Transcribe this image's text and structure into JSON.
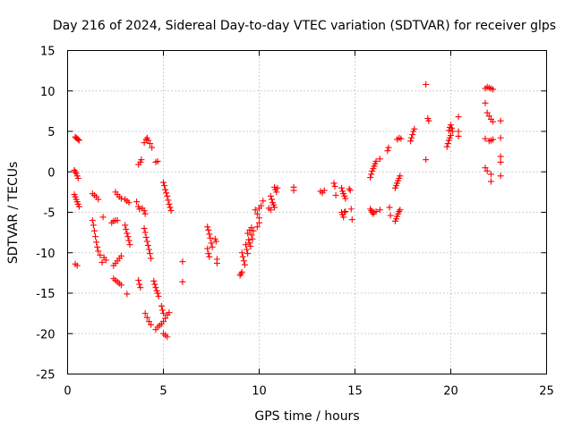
{
  "chart_data": {
    "type": "scatter",
    "title": "Day 216 of 2024, Sidereal Day-to-day VTEC variation (SDTVAR) for receiver glps",
    "xlabel": "GPS time / hours",
    "ylabel": "SDTVAR / TECUs",
    "xlim": [
      0,
      25
    ],
    "ylim": [
      -25,
      15
    ],
    "xticks": [
      0,
      5,
      10,
      15,
      20,
      25
    ],
    "yticks": [
      -25,
      -20,
      -15,
      -10,
      -5,
      0,
      5,
      10,
      15
    ],
    "grid": true,
    "marker": "+",
    "color": "#ff0000",
    "series": [
      {
        "name": "SDTVAR",
        "points": [
          [
            0.4,
            4.3
          ],
          [
            0.45,
            4.2
          ],
          [
            0.5,
            4.1
          ],
          [
            0.55,
            4.0
          ],
          [
            0.6,
            3.9
          ],
          [
            0.35,
            0.2
          ],
          [
            0.4,
            0.0
          ],
          [
            0.45,
            -0.2
          ],
          [
            0.5,
            -0.5
          ],
          [
            0.55,
            -0.8
          ],
          [
            0.35,
            -2.8
          ],
          [
            0.4,
            -3.1
          ],
          [
            0.45,
            -3.4
          ],
          [
            0.5,
            -3.7
          ],
          [
            0.55,
            -4.0
          ],
          [
            0.6,
            -4.3
          ],
          [
            0.4,
            -11.4
          ],
          [
            0.5,
            -11.6
          ],
          [
            1.3,
            -2.7
          ],
          [
            1.4,
            -2.9
          ],
          [
            1.5,
            -3.1
          ],
          [
            1.6,
            -3.4
          ],
          [
            1.3,
            -6.0
          ],
          [
            1.35,
            -6.6
          ],
          [
            1.4,
            -7.3
          ],
          [
            1.45,
            -8.0
          ],
          [
            1.5,
            -8.7
          ],
          [
            1.55,
            -9.3
          ],
          [
            1.6,
            -9.8
          ],
          [
            1.7,
            -10.3
          ],
          [
            1.8,
            -11.2
          ],
          [
            1.9,
            -10.6
          ],
          [
            2.0,
            -10.9
          ],
          [
            1.85,
            -5.6
          ],
          [
            2.3,
            -6.3
          ],
          [
            2.4,
            -6.1
          ],
          [
            2.5,
            -6.0
          ],
          [
            2.6,
            -6.0
          ],
          [
            2.4,
            -11.6
          ],
          [
            2.5,
            -11.3
          ],
          [
            2.6,
            -11.0
          ],
          [
            2.7,
            -10.7
          ],
          [
            2.8,
            -10.4
          ],
          [
            2.4,
            -13.2
          ],
          [
            2.5,
            -13.4
          ],
          [
            2.6,
            -13.6
          ],
          [
            2.7,
            -13.8
          ],
          [
            2.8,
            -14.0
          ],
          [
            2.5,
            -2.5
          ],
          [
            2.6,
            -2.8
          ],
          [
            2.7,
            -3.1
          ],
          [
            2.8,
            -3.3
          ],
          [
            3.0,
            -3.4
          ],
          [
            3.1,
            -3.6
          ],
          [
            3.2,
            -3.8
          ],
          [
            3.0,
            -6.6
          ],
          [
            3.05,
            -7.1
          ],
          [
            3.1,
            -7.6
          ],
          [
            3.15,
            -8.0
          ],
          [
            3.2,
            -8.5
          ],
          [
            3.25,
            -9.0
          ],
          [
            3.1,
            -15.1
          ],
          [
            3.6,
            -3.7
          ],
          [
            3.7,
            -4.3
          ],
          [
            3.75,
            -4.6
          ],
          [
            3.7,
            0.9
          ],
          [
            3.8,
            1.2
          ],
          [
            3.85,
            1.5
          ],
          [
            3.7,
            -13.4
          ],
          [
            3.75,
            -13.9
          ],
          [
            3.8,
            -14.3
          ],
          [
            3.9,
            -4.5
          ],
          [
            4.0,
            -4.8
          ],
          [
            4.05,
            -5.2
          ],
          [
            4.0,
            3.6
          ],
          [
            4.1,
            4.0
          ],
          [
            4.15,
            4.2
          ],
          [
            4.2,
            3.9
          ],
          [
            4.3,
            3.5
          ],
          [
            4.4,
            3.0
          ],
          [
            4.0,
            -7.0
          ],
          [
            4.05,
            -7.5
          ],
          [
            4.1,
            -8.1
          ],
          [
            4.15,
            -8.6
          ],
          [
            4.2,
            -9.1
          ],
          [
            4.25,
            -9.6
          ],
          [
            4.3,
            -10.1
          ],
          [
            4.35,
            -10.7
          ],
          [
            4.05,
            -17.5
          ],
          [
            4.15,
            -18.0
          ],
          [
            4.25,
            -18.5
          ],
          [
            4.35,
            -18.9
          ],
          [
            4.6,
            1.2
          ],
          [
            4.7,
            1.3
          ],
          [
            4.5,
            -13.5
          ],
          [
            4.55,
            -13.9
          ],
          [
            4.6,
            -14.3
          ],
          [
            4.65,
            -14.7
          ],
          [
            4.7,
            -15.0
          ],
          [
            4.75,
            -15.4
          ],
          [
            4.6,
            -19.5
          ],
          [
            4.7,
            -19.2
          ],
          [
            4.8,
            -19.0
          ],
          [
            4.9,
            -18.8
          ],
          [
            5.0,
            -18.5
          ],
          [
            5.1,
            -18.1
          ],
          [
            4.9,
            -16.6
          ],
          [
            4.95,
            -17.1
          ],
          [
            5.0,
            -17.5
          ],
          [
            5.0,
            -20.0
          ],
          [
            5.1,
            -20.2
          ],
          [
            5.2,
            -20.4
          ],
          [
            5.0,
            -1.3
          ],
          [
            5.05,
            -1.7
          ],
          [
            5.1,
            -2.2
          ],
          [
            5.15,
            -2.6
          ],
          [
            5.2,
            -3.0
          ],
          [
            5.25,
            -3.5
          ],
          [
            5.3,
            -4.0
          ],
          [
            5.35,
            -4.4
          ],
          [
            5.4,
            -4.8
          ],
          [
            5.2,
            -17.7
          ],
          [
            5.3,
            -17.4
          ],
          [
            6.0,
            -11.1
          ],
          [
            6.0,
            -13.6
          ],
          [
            7.3,
            -6.8
          ],
          [
            7.35,
            -7.2
          ],
          [
            7.4,
            -7.7
          ],
          [
            7.45,
            -8.2
          ],
          [
            7.5,
            -8.8
          ],
          [
            7.55,
            -9.3
          ],
          [
            7.3,
            -9.5
          ],
          [
            7.35,
            -10.1
          ],
          [
            7.4,
            -10.5
          ],
          [
            7.7,
            -8.3
          ],
          [
            7.75,
            -8.6
          ],
          [
            7.8,
            -10.8
          ],
          [
            7.8,
            -11.3
          ],
          [
            9.0,
            -12.8
          ],
          [
            9.05,
            -12.6
          ],
          [
            9.1,
            -12.4
          ],
          [
            9.1,
            -10.0
          ],
          [
            9.15,
            -10.5
          ],
          [
            9.2,
            -11.0
          ],
          [
            9.25,
            -11.5
          ],
          [
            9.3,
            -9.0
          ],
          [
            9.35,
            -9.6
          ],
          [
            9.4,
            -10.1
          ],
          [
            9.45,
            -8.4
          ],
          [
            9.5,
            -8.8
          ],
          [
            9.55,
            -9.2
          ],
          [
            9.6,
            -7.8
          ],
          [
            9.65,
            -8.3
          ],
          [
            9.7,
            -7.3
          ],
          [
            9.4,
            -7.6
          ],
          [
            9.5,
            -7.2
          ],
          [
            9.6,
            -6.9
          ],
          [
            9.8,
            -4.7
          ],
          [
            9.9,
            -5.2
          ],
          [
            10.0,
            -5.7
          ],
          [
            10.0,
            -4.5
          ],
          [
            10.1,
            -4.2
          ],
          [
            10.2,
            -3.6
          ],
          [
            10.0,
            -6.3
          ],
          [
            9.9,
            -6.8
          ],
          [
            10.6,
            -3.0
          ],
          [
            10.65,
            -3.4
          ],
          [
            10.7,
            -3.8
          ],
          [
            10.75,
            -4.1
          ],
          [
            10.8,
            -4.4
          ],
          [
            10.8,
            -1.9
          ],
          [
            10.85,
            -2.2
          ],
          [
            10.9,
            -2.5
          ],
          [
            10.95,
            -2.0
          ],
          [
            10.5,
            -4.5
          ],
          [
            10.6,
            -4.7
          ],
          [
            11.8,
            -1.9
          ],
          [
            11.8,
            -2.3
          ],
          [
            13.2,
            -2.4
          ],
          [
            13.3,
            -2.6
          ],
          [
            13.4,
            -2.3
          ],
          [
            13.9,
            -1.4
          ],
          [
            13.95,
            -1.8
          ],
          [
            14.0,
            -2.9
          ],
          [
            14.3,
            -2.0
          ],
          [
            14.35,
            -2.4
          ],
          [
            14.4,
            -2.7
          ],
          [
            14.45,
            -3.0
          ],
          [
            14.5,
            -3.3
          ],
          [
            14.3,
            -5.0
          ],
          [
            14.35,
            -5.3
          ],
          [
            14.4,
            -5.6
          ],
          [
            14.45,
            -5.0
          ],
          [
            14.5,
            -4.9
          ],
          [
            14.7,
            -2.1
          ],
          [
            14.75,
            -2.3
          ],
          [
            14.8,
            -4.6
          ],
          [
            14.85,
            -5.9
          ],
          [
            15.8,
            -0.7
          ],
          [
            15.85,
            -0.3
          ],
          [
            15.9,
            0.1
          ],
          [
            15.95,
            0.4
          ],
          [
            16.0,
            0.7
          ],
          [
            16.05,
            1.0
          ],
          [
            16.1,
            1.3
          ],
          [
            15.8,
            -4.6
          ],
          [
            15.85,
            -4.8
          ],
          [
            15.9,
            -5.0
          ],
          [
            15.95,
            -5.2
          ],
          [
            16.0,
            -5.0
          ],
          [
            16.1,
            -4.9
          ],
          [
            16.3,
            1.6
          ],
          [
            16.3,
            -4.7
          ],
          [
            16.7,
            2.6
          ],
          [
            16.75,
            3.0
          ],
          [
            16.8,
            -4.4
          ],
          [
            16.85,
            -5.4
          ],
          [
            17.2,
            4.0
          ],
          [
            17.3,
            4.2
          ],
          [
            17.4,
            4.1
          ],
          [
            17.1,
            -2.0
          ],
          [
            17.15,
            -1.7
          ],
          [
            17.2,
            -1.4
          ],
          [
            17.25,
            -1.1
          ],
          [
            17.3,
            -0.8
          ],
          [
            17.35,
            -0.5
          ],
          [
            17.1,
            -6.1
          ],
          [
            17.15,
            -5.8
          ],
          [
            17.2,
            -5.5
          ],
          [
            17.25,
            -5.2
          ],
          [
            17.3,
            -4.9
          ],
          [
            17.35,
            -4.7
          ],
          [
            17.9,
            3.8
          ],
          [
            17.95,
            4.2
          ],
          [
            18.0,
            4.6
          ],
          [
            18.05,
            5.0
          ],
          [
            18.1,
            5.3
          ],
          [
            18.7,
            10.8
          ],
          [
            18.8,
            6.6
          ],
          [
            18.85,
            6.3
          ],
          [
            18.7,
            1.5
          ],
          [
            19.8,
            3.1
          ],
          [
            19.85,
            3.5
          ],
          [
            19.9,
            3.9
          ],
          [
            19.95,
            4.2
          ],
          [
            20.0,
            4.5
          ],
          [
            19.9,
            5.1
          ],
          [
            19.95,
            5.5
          ],
          [
            20.0,
            5.8
          ],
          [
            20.05,
            5.4
          ],
          [
            20.1,
            5.0
          ],
          [
            20.4,
            6.8
          ],
          [
            20.4,
            4.4
          ],
          [
            20.4,
            5.0
          ],
          [
            21.8,
            10.3
          ],
          [
            21.9,
            10.5
          ],
          [
            22.0,
            10.4
          ],
          [
            22.1,
            10.3
          ],
          [
            22.2,
            10.2
          ],
          [
            21.8,
            8.5
          ],
          [
            21.9,
            7.3
          ],
          [
            22.0,
            6.9
          ],
          [
            22.1,
            6.5
          ],
          [
            22.2,
            6.2
          ],
          [
            21.8,
            4.1
          ],
          [
            22.0,
            3.8
          ],
          [
            22.1,
            3.9
          ],
          [
            22.2,
            4.0
          ],
          [
            21.8,
            0.5
          ],
          [
            21.9,
            0.1
          ],
          [
            22.1,
            -0.3
          ],
          [
            22.1,
            -1.2
          ],
          [
            22.6,
            6.3
          ],
          [
            22.6,
            4.2
          ],
          [
            22.6,
            1.9
          ],
          [
            22.6,
            1.2
          ],
          [
            22.6,
            -0.5
          ]
        ]
      }
    ]
  }
}
